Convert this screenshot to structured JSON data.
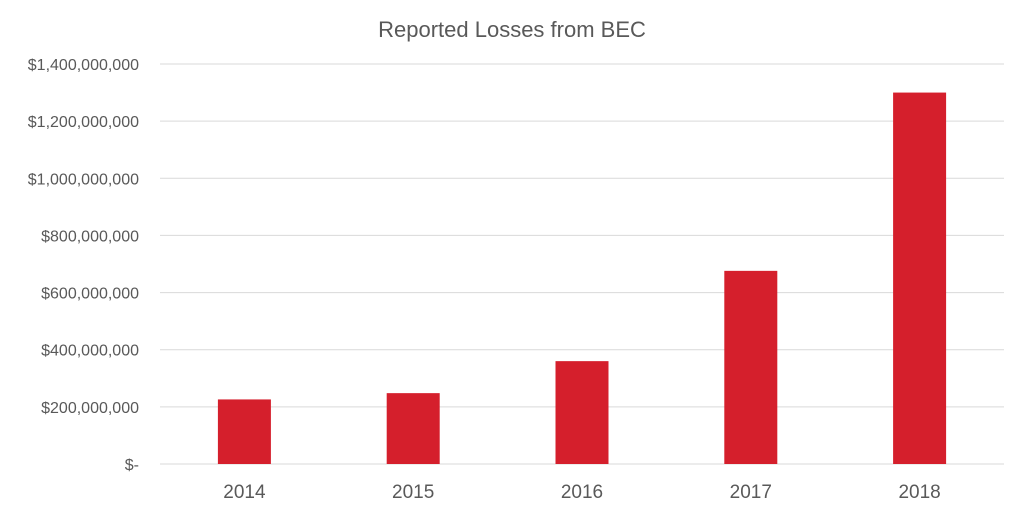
{
  "chart_data": {
    "type": "bar",
    "title": "Reported Losses from BEC",
    "categories": [
      "2014",
      "2015",
      "2016",
      "2017",
      "2018"
    ],
    "values": [
      226000000,
      248000000,
      360000000,
      676000000,
      1300000000
    ],
    "ylim": [
      0,
      1400000000
    ],
    "yticks": [
      0,
      200000000,
      400000000,
      600000000,
      800000000,
      1000000000,
      1200000000,
      1400000000
    ],
    "ytick_labels": [
      "$-",
      "$200,000,000",
      "$400,000,000",
      "$600,000,000",
      "$800,000,000",
      "$1,000,000,000",
      "$1,200,000,000",
      "$1,400,000,000"
    ],
    "xlabel": "",
    "ylabel": "",
    "grid": true,
    "legend": "none",
    "bar_color": "#d51f2c"
  }
}
